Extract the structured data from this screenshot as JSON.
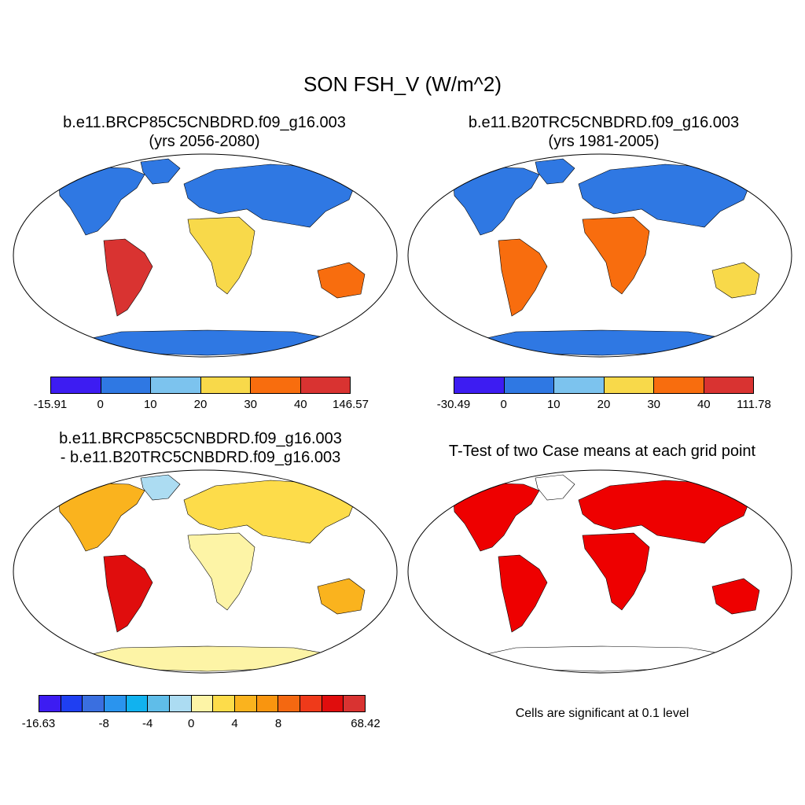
{
  "main_title": "SON FSH_V (W/m^2)",
  "panels": [
    {
      "title_line1": "b.e11.BRCP85C5CNBDRD.f09_g16.003",
      "title_line2": "(yrs 2056-2080)",
      "colorbar": {
        "colors": [
          "#3d1cf2",
          "#2f78e3",
          "#7cc3ee",
          "#f8d94a",
          "#f86d0e",
          "#d93331"
        ],
        "tick_labels": [
          "-15.91",
          "0",
          "10",
          "20",
          "30",
          "40",
          "146.57"
        ]
      }
    },
    {
      "title_line1": "b.e11.B20TRC5CNBDRD.f09_g16.003",
      "title_line2": "(yrs 1981-2005)",
      "colorbar": {
        "colors": [
          "#3d1cf2",
          "#2f78e3",
          "#7cc3ee",
          "#f8d94a",
          "#f86d0e",
          "#d93331"
        ],
        "tick_labels": [
          "-30.49",
          "0",
          "10",
          "20",
          "30",
          "40",
          "111.78"
        ]
      }
    },
    {
      "title_line1": "b.e11.BRCP85C5CNBDRD.f09_g16.003",
      "title_line2": "- b.e11.B20TRC5CNBDRD.f09_g16.003",
      "colorbar": {
        "colors": [
          "#3d1cf2",
          "#1f3ff2",
          "#3a6fe0",
          "#2a94ee",
          "#11b2ef",
          "#5fbde9",
          "#acdcf2",
          "#fdf4a6",
          "#fddc4a",
          "#fab31e",
          "#f9950f",
          "#f46811",
          "#ef3a1a",
          "#e00d0d",
          "#d93331"
        ],
        "tick_labels": [
          "-16.63",
          "-8",
          "-4",
          "0",
          "4",
          "8",
          "68.42"
        ]
      }
    },
    {
      "title_line1": "T-Test of two Case means at each grid point",
      "note": "Cells are significant at 0.1 level"
    }
  ],
  "colors": {
    "ocean": "#ffffff",
    "outline": "#000000",
    "significant": "#ee0000"
  }
}
